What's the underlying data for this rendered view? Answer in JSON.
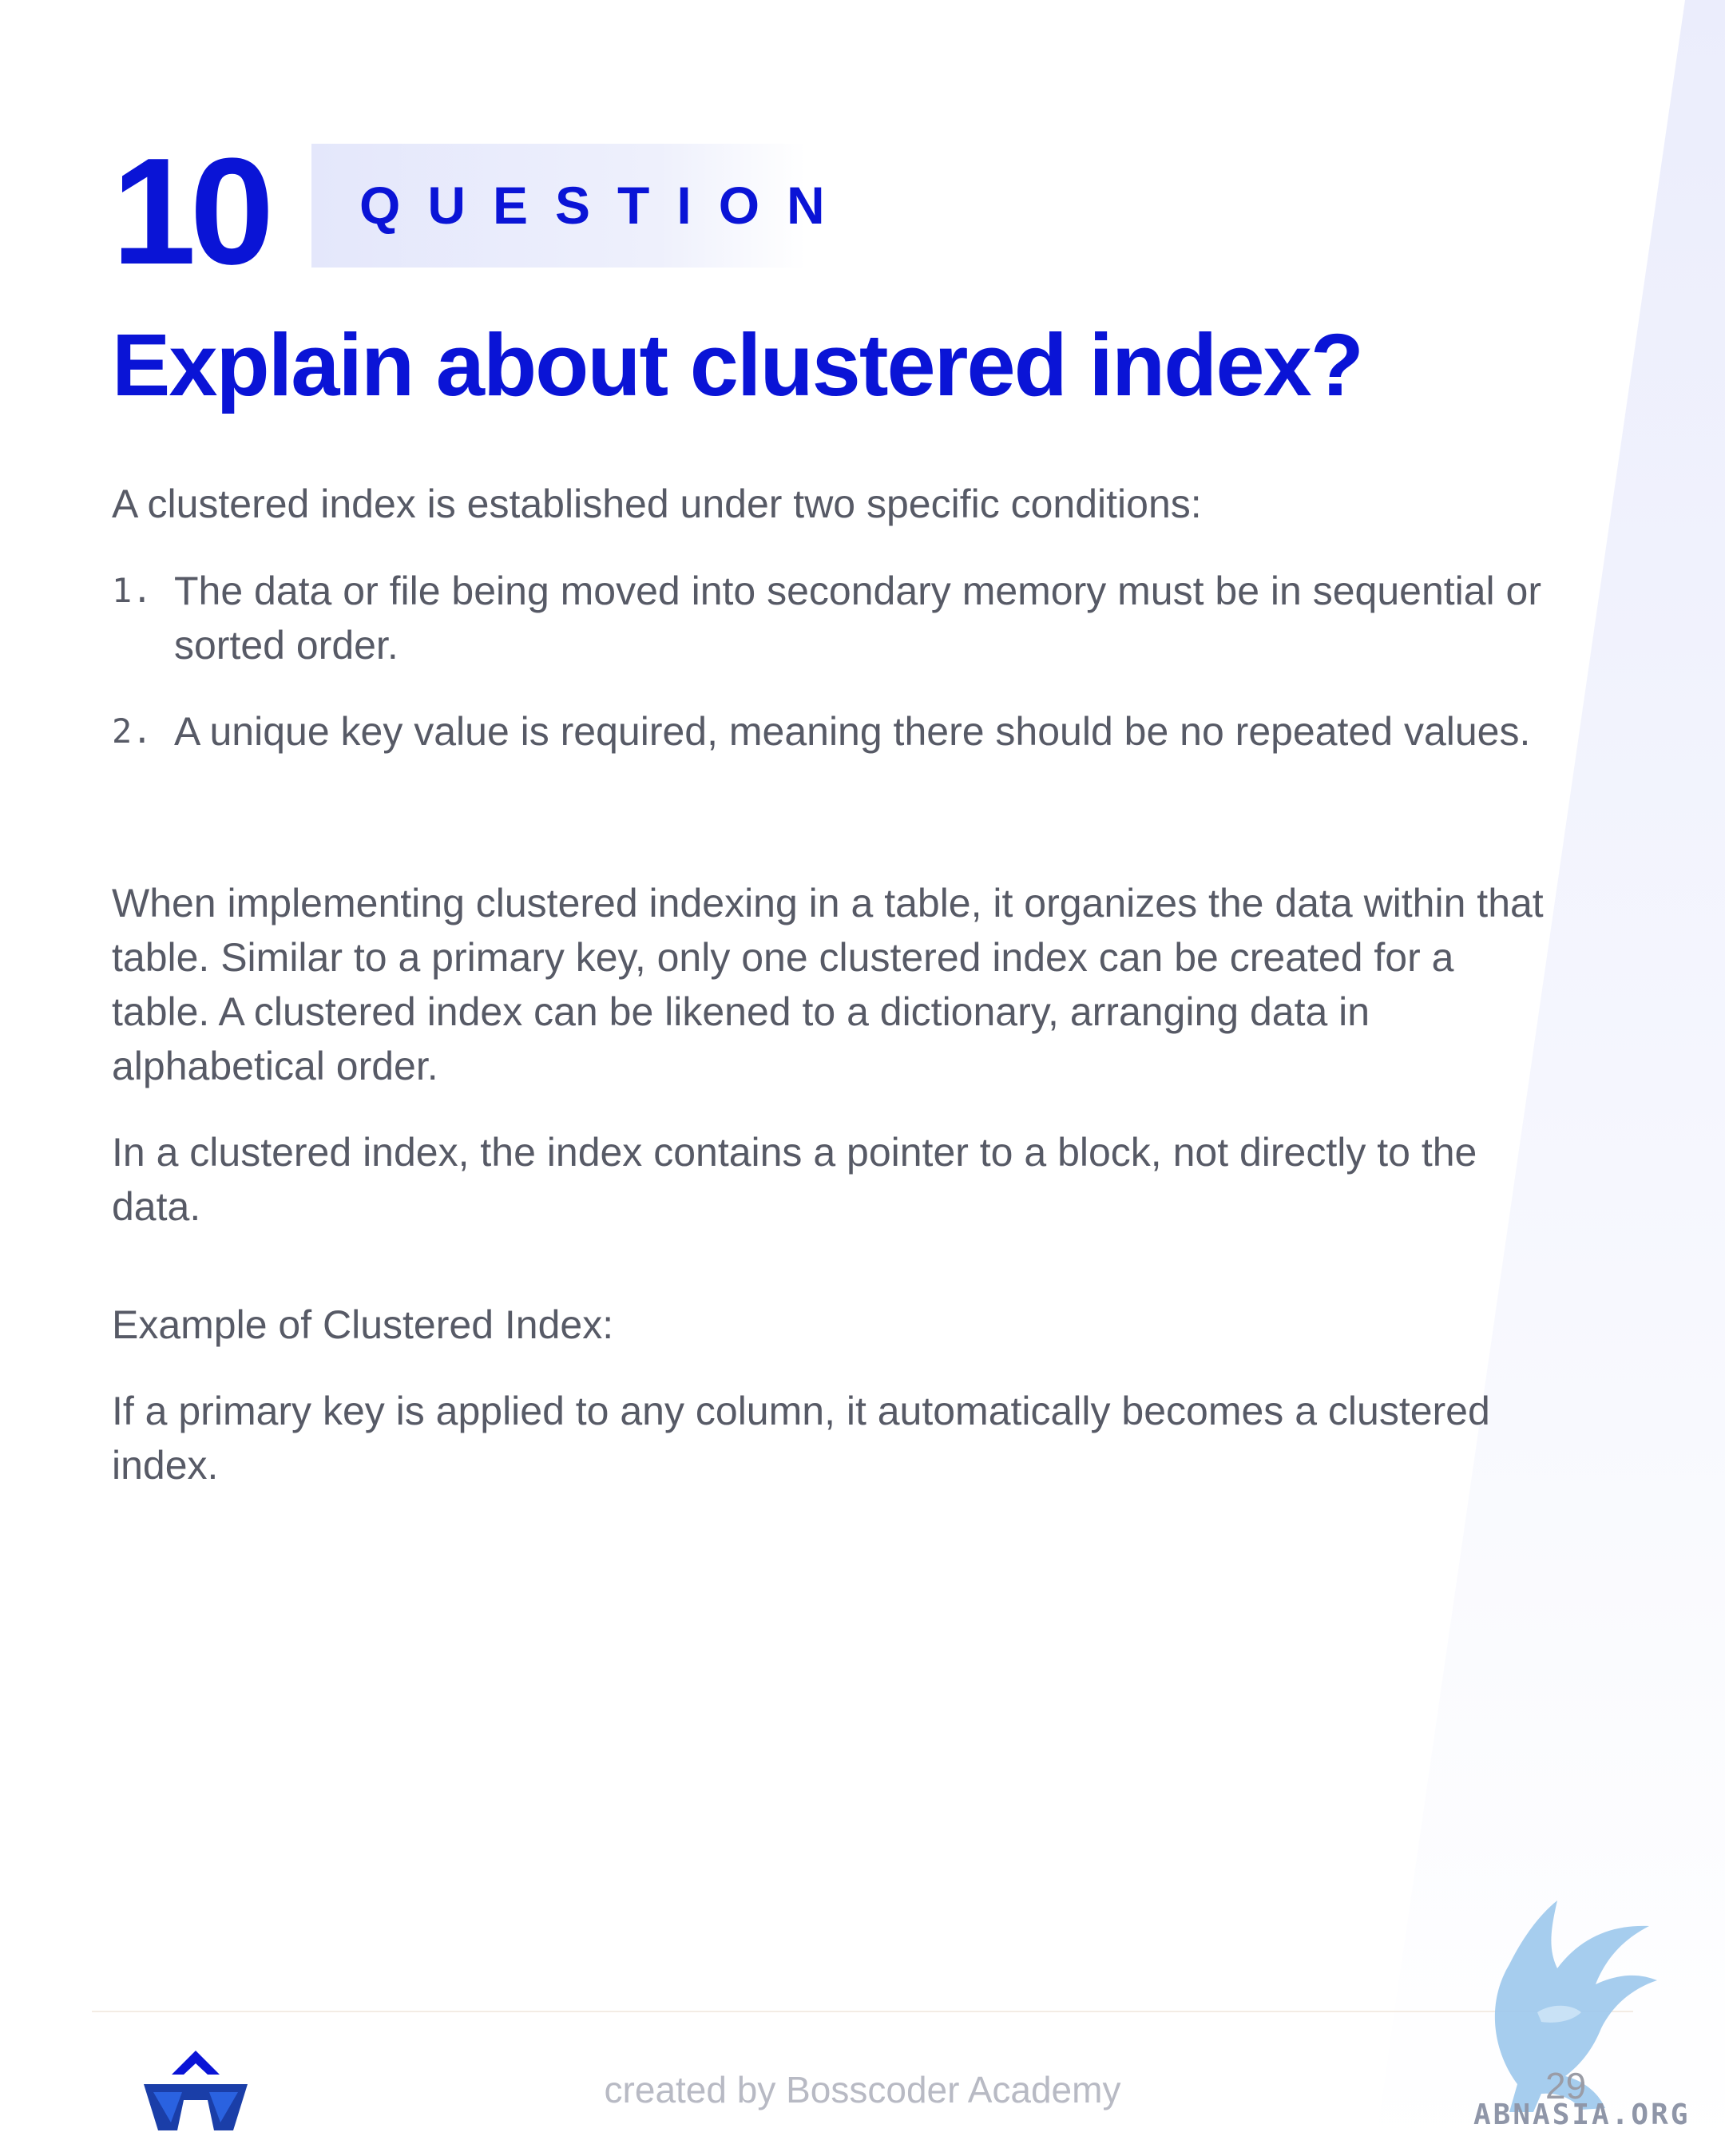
{
  "question": {
    "number": "10",
    "label": "QUESTION",
    "title": "Explain about clustered index?"
  },
  "body": {
    "intro": "A clustered index is established under two specific conditions:",
    "list": [
      {
        "num": "1.",
        "text": "The data or file being moved into secondary memory must be in sequential or sorted order."
      },
      {
        "num": "2.",
        "text": "A unique key value is required, meaning there should be no repeated values."
      }
    ],
    "paragraph1": "When implementing clustered indexing in a table, it organizes the data within that table. Similar to a primary key, only one clustered index can be created for a table. A clustered index can be likened to a dictionary, arranging data in alphabetical order.",
    "paragraph2": "In a clustered index, the index contains a pointer to a block, not directly to the data.",
    "example_heading": "Example of Clustered Index:",
    "example_text": "If a primary key is applied to any column, it automatically becomes a clustered index."
  },
  "footer": {
    "credit": "created by Bosscoder Academy",
    "page_number": "29",
    "watermark": "ABNASIA.ORG"
  },
  "colors": {
    "accent": "#0a14d6",
    "body_text": "#575a66",
    "footer_text": "#b8bac4"
  }
}
